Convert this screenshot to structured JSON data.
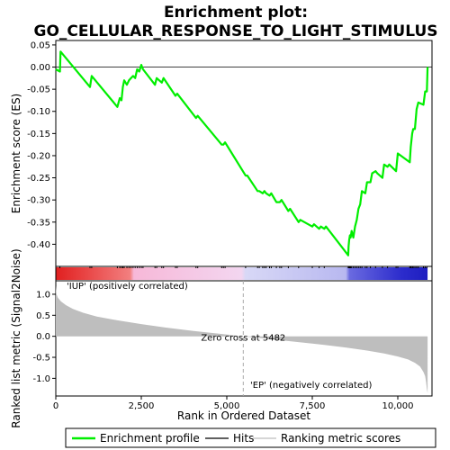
{
  "title_line1": "Enrichment plot:",
  "title_line2": "GO_CELLULAR_RESPONSE_TO_LIGHT_STIMULUS",
  "colors": {
    "es_line": "#00ee00",
    "hits": "#000000",
    "metric_fill": "#bebebe",
    "pos_label": "#cc0000",
    "neg_label": "#0000cc",
    "zero_line": "#aaaaaa"
  },
  "chart_data": [
    {
      "type": "line",
      "name": "es-plot",
      "ylabel": "Enrichment score (ES)",
      "xlim": [
        0,
        11000
      ],
      "ylim": [
        -0.45,
        0.06
      ],
      "yticks": [
        -0.4,
        -0.35,
        -0.3,
        -0.25,
        -0.2,
        -0.15,
        -0.1,
        -0.05,
        0.0,
        0.05
      ],
      "ytick_labels": [
        "-0.40",
        "-0.35",
        "-0.30",
        "-0.25",
        "-0.20",
        "-0.15",
        "-0.10",
        "-0.05",
        "0.00",
        "0.05"
      ],
      "grid": false,
      "series": [
        {
          "x": [
            0,
            120,
            140,
            1000,
            1050,
            1800,
            1870,
            1920,
            1960,
            2000,
            2080,
            2140,
            2200,
            2260,
            2320,
            2380,
            2440,
            2500,
            2550,
            2900,
            2950,
            3100,
            3150,
            3500,
            3550,
            4100,
            4150,
            4850,
            4900,
            4950,
            5550,
            5600,
            5900,
            5950,
            6050,
            6100,
            6150,
            6250,
            6300,
            6450,
            6550,
            6600,
            6800,
            6850,
            7100,
            7150,
            7500,
            7550,
            7700,
            7750,
            7850,
            7900,
            8550,
            8560,
            8580,
            8600,
            8620,
            8650,
            8700,
            8750,
            8800,
            8850,
            8900,
            8950,
            9050,
            9100,
            9200,
            9250,
            9350,
            9400,
            9550,
            9600,
            9700,
            9750,
            9950,
            10000,
            10350,
            10380,
            10420,
            10450,
            10500,
            10550,
            10600,
            10750,
            10800,
            10850,
            10870
          ],
          "y": [
            -0.005,
            -0.01,
            0.035,
            -0.045,
            -0.02,
            -0.09,
            -0.07,
            -0.075,
            -0.045,
            -0.03,
            -0.04,
            -0.03,
            -0.025,
            -0.02,
            -0.025,
            -0.005,
            -0.01,
            0.005,
            -0.005,
            -0.04,
            -0.025,
            -0.035,
            -0.025,
            -0.065,
            -0.06,
            -0.115,
            -0.11,
            -0.175,
            -0.175,
            -0.17,
            -0.245,
            -0.245,
            -0.28,
            -0.28,
            -0.285,
            -0.28,
            -0.285,
            -0.29,
            -0.285,
            -0.305,
            -0.305,
            -0.3,
            -0.325,
            -0.32,
            -0.35,
            -0.345,
            -0.36,
            -0.355,
            -0.365,
            -0.36,
            -0.365,
            -0.36,
            -0.425,
            -0.405,
            -0.39,
            -0.38,
            -0.385,
            -0.37,
            -0.385,
            -0.36,
            -0.345,
            -0.32,
            -0.31,
            -0.28,
            -0.285,
            -0.26,
            -0.26,
            -0.24,
            -0.235,
            -0.24,
            -0.25,
            -0.22,
            -0.225,
            -0.22,
            -0.235,
            -0.195,
            -0.215,
            -0.18,
            -0.15,
            -0.14,
            -0.14,
            -0.095,
            -0.08,
            -0.085,
            -0.055,
            -0.055,
            0.0
          ]
        }
      ]
    },
    {
      "type": "hits",
      "name": "hits-strip",
      "hit_positions": [
        120,
        1000,
        1050,
        1800,
        1870,
        1920,
        1960,
        2000,
        2080,
        2140,
        2200,
        2260,
        2320,
        2380,
        2440,
        2500,
        2550,
        2900,
        2950,
        3100,
        3150,
        3500,
        3550,
        4100,
        4150,
        4850,
        4900,
        4950,
        5550,
        5900,
        5950,
        6050,
        6100,
        6150,
        6250,
        6300,
        6450,
        6550,
        6600,
        6800,
        7100,
        7500,
        7700,
        7850,
        8550,
        8560,
        8580,
        8600,
        8620,
        8650,
        8700,
        8750,
        8800,
        8850,
        8900,
        8950,
        9050,
        9100,
        9200,
        9350,
        9550,
        9700,
        9950,
        10000,
        10350,
        10380,
        10420,
        10450,
        10500,
        10550,
        10600,
        10750,
        10800,
        10850
      ]
    },
    {
      "type": "area",
      "name": "ranked-metric-plot",
      "ylabel": "Ranked list metric (Signal2Noise)",
      "xlabel": "Rank in Ordered Dataset",
      "xlim": [
        0,
        11000
      ],
      "ylim": [
        -1.42,
        1.32
      ],
      "xticks": [
        0,
        2500,
        5000,
        7500,
        10000
      ],
      "xtick_labels": [
        "0",
        "2,500",
        "5,000",
        "7,500",
        "10,000"
      ],
      "yticks": [
        -1.0,
        -0.5,
        0.0,
        0.5,
        1.0
      ],
      "ytick_labels": [
        "-1.0",
        "-0.5",
        "0.0",
        "0.5",
        "1.0"
      ],
      "x": [
        0,
        20,
        60,
        150,
        300,
        500,
        800,
        1200,
        1800,
        2500,
        3200,
        4000,
        4800,
        5482,
        6200,
        7000,
        7800,
        8500,
        9100,
        9600,
        10000,
        10300,
        10500,
        10650,
        10750,
        10800,
        10830,
        10850,
        10870
      ],
      "values": [
        1.2,
        1.0,
        0.92,
        0.83,
        0.74,
        0.65,
        0.56,
        0.47,
        0.38,
        0.29,
        0.21,
        0.13,
        0.06,
        0.0,
        -0.06,
        -0.13,
        -0.2,
        -0.27,
        -0.34,
        -0.41,
        -0.48,
        -0.55,
        -0.63,
        -0.72,
        -0.85,
        -0.95,
        -1.1,
        -1.25,
        -1.35
      ],
      "zero_cross_rank": 5482,
      "zero_cross_label": "Zero cross at 5482",
      "pos_label": "'IUP' (positively correlated)",
      "neg_label": "'EP' (negatively correlated)"
    }
  ],
  "legend": {
    "items": [
      {
        "label": "Enrichment profile",
        "color": "#00ee00",
        "kind": "line"
      },
      {
        "label": "Hits",
        "color": "#000000",
        "kind": "line"
      },
      {
        "label": "Ranking metric scores",
        "color": "#bebebe",
        "kind": "line"
      }
    ]
  }
}
